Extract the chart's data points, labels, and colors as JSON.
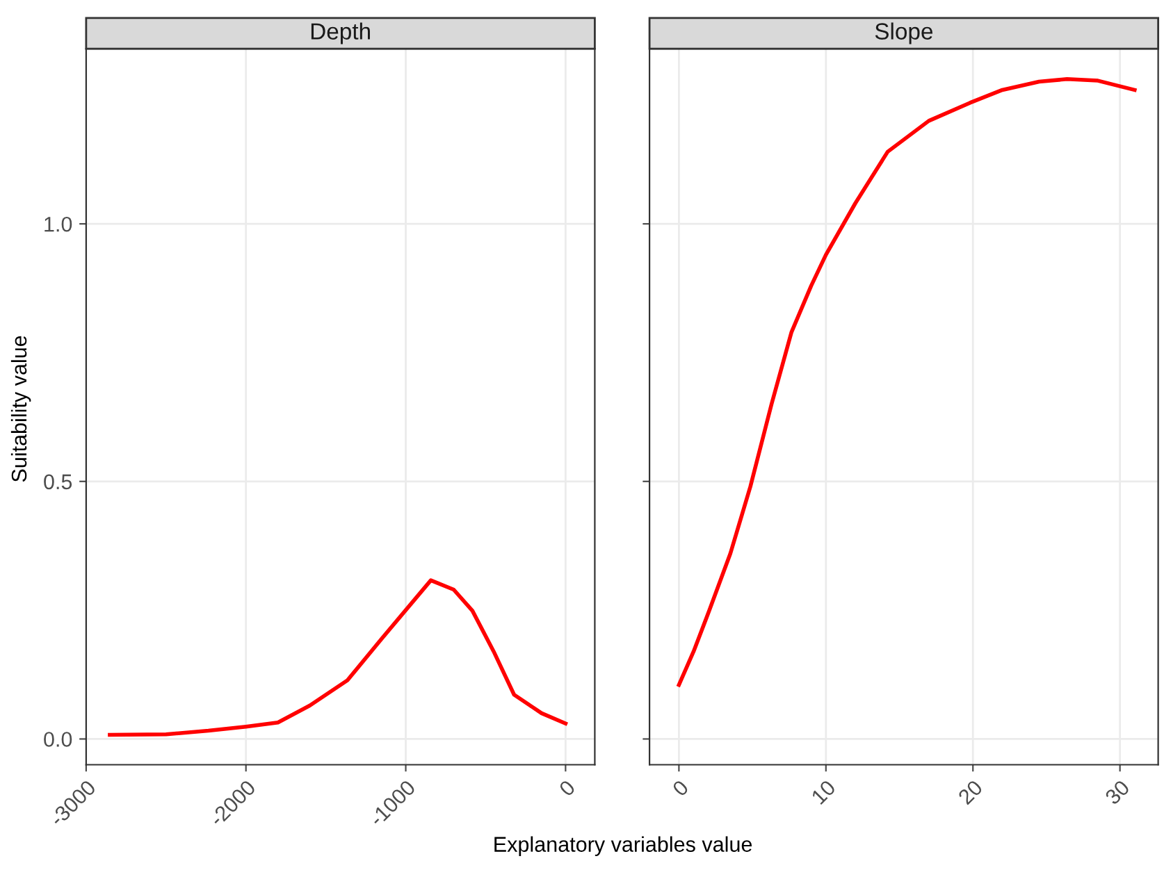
{
  "chart_data": [
    {
      "type": "line",
      "title": "Depth",
      "xlabel": "Explanatory variables value",
      "ylabel": "Suitability value",
      "x": [
        -2852,
        -2500,
        -2235,
        -2000,
        -1800,
        -1600,
        -1365,
        -1150,
        -930,
        -843,
        -700,
        -583,
        -450,
        -322,
        -150,
        0
      ],
      "series": [
        {
          "color": "#ff0000",
          "values": [
            0.008,
            0.009,
            0.016,
            0.024,
            0.032,
            0.065,
            0.114,
            0.195,
            0.276,
            0.308,
            0.29,
            0.249,
            0.17,
            0.086,
            0.05,
            0.03
          ]
        }
      ],
      "xlim": [
        -3000,
        183
      ],
      "xticks": [
        -3000,
        -2000,
        -1000,
        0
      ],
      "ylim": [
        -0.05,
        1.34
      ],
      "yticks": [
        {
          "value": 0,
          "label": "0.0"
        },
        {
          "value": 0.5,
          "label": "0.5"
        },
        {
          "value": 1,
          "label": "1.0"
        }
      ],
      "grid": true,
      "line_style": "solid",
      "marker": "none"
    },
    {
      "type": "line",
      "title": "Slope",
      "x": [
        0,
        1,
        2.06,
        3.5,
        4.86,
        6.3,
        7.66,
        9,
        10,
        12,
        14.2,
        17,
        19.8,
        22,
        24.5,
        26.4,
        28.5,
        31
      ],
      "series": [
        {
          "color": "#ff0000",
          "values": [
            0.105,
            0.17,
            0.249,
            0.36,
            0.49,
            0.65,
            0.79,
            0.88,
            0.94,
            1.04,
            1.14,
            1.2,
            1.235,
            1.26,
            1.276,
            1.281,
            1.278,
            1.26
          ]
        }
      ],
      "xlim": [
        -2,
        32.6
      ],
      "xticks": [
        0,
        10,
        20,
        30
      ],
      "ylim": [
        -0.05,
        1.34
      ],
      "yticks": [
        {
          "value": 0,
          "label": null
        },
        {
          "value": 0.5,
          "label": null
        },
        {
          "value": 1,
          "label": null
        }
      ],
      "grid": true,
      "tick_labels": "x",
      "line_style": "solid",
      "marker": "none"
    }
  ]
}
